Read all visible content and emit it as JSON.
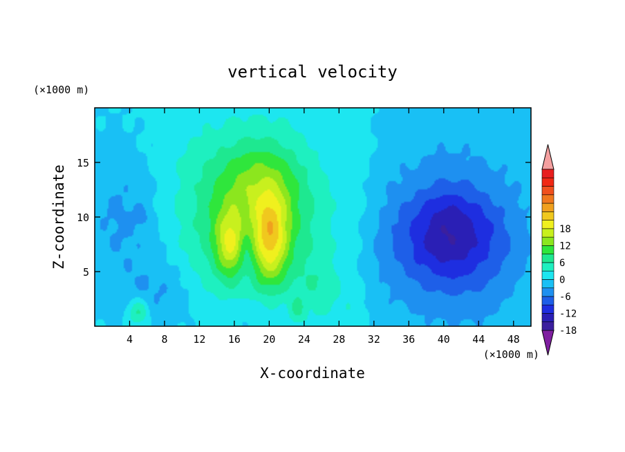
{
  "chart_data": {
    "type": "heatmap",
    "title": "vertical velocity",
    "xlabel": "X-coordinate",
    "ylabel": "Z-coordinate",
    "x_unit": "(×1000 m)",
    "y_unit": "(×1000 m)",
    "xlim": [
      0,
      50
    ],
    "ylim": [
      0,
      20
    ],
    "x_ticks": [
      4,
      8,
      12,
      16,
      20,
      24,
      28,
      32,
      36,
      40,
      44,
      48
    ],
    "y_ticks": [
      5,
      10,
      15
    ],
    "colorbar": {
      "min": -21,
      "max": 21,
      "step": 3,
      "tick_labels": [
        18,
        12,
        6,
        0,
        -6,
        -12,
        -18
      ],
      "colors": [
        "#7f1fa0",
        "#3b1f9e",
        "#2a1fb5",
        "#1e2ee0",
        "#1e5fe8",
        "#1e90f0",
        "#19c0f5",
        "#1de6f0",
        "#1ef0c0",
        "#1ee890",
        "#2fe63c",
        "#8ce61e",
        "#c8f01e",
        "#f0f01e",
        "#f0c81e",
        "#f0a01e",
        "#f0781e",
        "#f0501e",
        "#f02814",
        "#e81e1e",
        "#f4a0a0"
      ]
    },
    "features": [
      {
        "x": 20.2,
        "z": 8.0,
        "sx": 1.3,
        "sz": 2.8,
        "a": 12
      },
      {
        "x": 15.5,
        "z": 7.5,
        "sx": 1.2,
        "sz": 2.0,
        "a": 10
      },
      {
        "x": 18.5,
        "z": 11.0,
        "sx": 4.5,
        "sz": 4.2,
        "a": 9
      },
      {
        "x": 19.0,
        "z": 13.5,
        "sx": 3.2,
        "sz": 2.5,
        "a": 3
      },
      {
        "x": 19.5,
        "z": 6.0,
        "sx": 6.5,
        "sz": 8.5,
        "a": 5
      },
      {
        "x": 17.3,
        "z": 7.0,
        "sx": 0.8,
        "sz": 2.2,
        "a": -5
      },
      {
        "x": 18.5,
        "z": 0.8,
        "sx": 4.0,
        "sz": 1.8,
        "a": -4
      },
      {
        "x": 5.0,
        "z": 1.3,
        "sx": 0.9,
        "sz": 0.9,
        "a": 8
      },
      {
        "x": 23.2,
        "z": 1.5,
        "sx": 0.6,
        "sz": 0.8,
        "a": 5
      },
      {
        "x": 26.0,
        "z": 3.5,
        "sx": 1.5,
        "sz": 1.8,
        "a": 3
      },
      {
        "x": 40.5,
        "z": 8.0,
        "sx": 4.0,
        "sz": 3.0,
        "a": -8
      },
      {
        "x": 40.5,
        "z": 10.0,
        "sx": 2.0,
        "sz": 2.0,
        "a": -2
      },
      {
        "x": 42.0,
        "z": 6.5,
        "sx": 5.5,
        "sz": 5.5,
        "a": -3
      },
      {
        "x": 40.0,
        "z": 10.0,
        "sx": 7.0,
        "sz": 7.0,
        "a": -3
      },
      {
        "x": 46.5,
        "z": 8.0,
        "sx": 2.5,
        "sz": 4.0,
        "a": -1
      },
      {
        "x": 3.5,
        "z": 10.0,
        "sx": 3.2,
        "sz": 4.0,
        "a": -4
      },
      {
        "x": 5.5,
        "z": 10.0,
        "sx": 0.6,
        "sz": 0.7,
        "a": -2
      },
      {
        "x": 7.5,
        "z": 3.0,
        "sx": 3.0,
        "sz": 2.5,
        "a": -4
      },
      {
        "x": 10.0,
        "z": 12.0,
        "sx": 4.0,
        "sz": 6.0,
        "a": 1.5
      },
      {
        "x": 30.5,
        "z": 12.0,
        "sx": 1.5,
        "sz": 8.0,
        "a": 1.2
      },
      {
        "x": 29.5,
        "z": 1.5,
        "sx": 1.2,
        "sz": 1.2,
        "a": 1.5
      },
      {
        "x": 33.0,
        "z": 6.0,
        "sx": 2.5,
        "sz": 4.0,
        "a": -1.5
      }
    ]
  }
}
